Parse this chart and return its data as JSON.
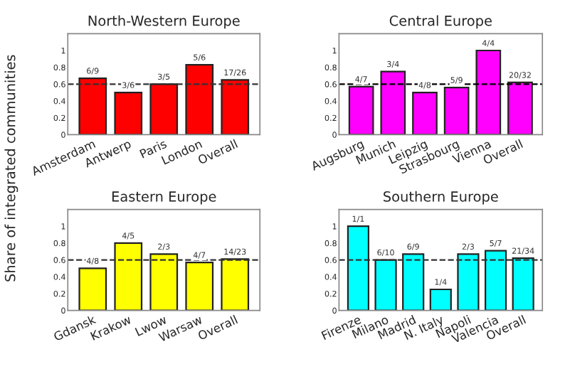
{
  "chart_data": [
    {
      "type": "bar",
      "title": "North-Western Europe",
      "ylabel": "Share of integrated communities",
      "categories": [
        "Amsterdam",
        "Antwerp",
        "Paris",
        "London",
        "Overall"
      ],
      "values": [
        0.67,
        0.5,
        0.6,
        0.83,
        0.65
      ],
      "value_labels": [
        "6/9",
        "3/6",
        "3/5",
        "5/6",
        "17/26"
      ],
      "color": "#ff0000",
      "ylim": [
        0,
        1.2
      ],
      "yticks": [
        0,
        0.2,
        0.4,
        0.6,
        0.8,
        1
      ],
      "ref_lines": [
        {
          "axis": "y",
          "value": 0.6,
          "line_style": "dashed",
          "color": "#333333"
        }
      ],
      "grid": false
    },
    {
      "type": "bar",
      "title": "Central Europe",
      "categories": [
        "Augsburg",
        "Munich",
        "Leipzig",
        "Strasbourg",
        "Vienna",
        "Overall"
      ],
      "values": [
        0.57,
        0.75,
        0.5,
        0.56,
        1,
        0.62
      ],
      "value_labels": [
        "4/7",
        "3/4",
        "4/8",
        "5/9",
        "4/4",
        "20/32"
      ],
      "color": "#ff00ff",
      "ylim": [
        0,
        1.2
      ],
      "yticks": [
        0,
        0.2,
        0.4,
        0.6,
        0.8,
        1
      ],
      "ref_lines": [
        {
          "axis": "y",
          "value": 0.6,
          "line_style": "dashed",
          "color": "#000000"
        }
      ],
      "grid": false
    },
    {
      "type": "bar",
      "title": "Eastern Europe",
      "categories": [
        "Gdansk",
        "Krakow",
        "Lwow",
        "Warsaw",
        "Overall"
      ],
      "values": [
        0.5,
        0.8,
        0.67,
        0.57,
        0.61
      ],
      "value_labels": [
        "4/8",
        "4/5",
        "2/3",
        "4/7",
        "14/23"
      ],
      "color": "#ffff00",
      "ylim": [
        0,
        1.2
      ],
      "yticks": [
        0,
        0.2,
        0.4,
        0.6,
        0.8,
        1
      ],
      "ref_lines": [
        {
          "axis": "y",
          "value": 0.6,
          "line_style": "dashed",
          "color": "#333333"
        }
      ],
      "grid": false
    },
    {
      "type": "bar",
      "title": "Southern Europe",
      "categories": [
        "Firenze",
        "Milano",
        "Madrid",
        "N. Italy",
        "Napoli",
        "Valencia",
        "Overall"
      ],
      "values": [
        1,
        0.6,
        0.67,
        0.25,
        0.67,
        0.71,
        0.62
      ],
      "value_labels": [
        "1/1",
        "6/10",
        "6/9",
        "1/4",
        "2/3",
        "5/7",
        "21/34"
      ],
      "color": "#00ffff",
      "ylim": [
        0,
        1.2
      ],
      "yticks": [
        0,
        0.2,
        0.4,
        0.6,
        0.8,
        1
      ],
      "ref_lines": [
        {
          "axis": "y",
          "value": 0.6,
          "line_style": "dashed",
          "color": "#333333"
        }
      ],
      "grid": false
    }
  ]
}
